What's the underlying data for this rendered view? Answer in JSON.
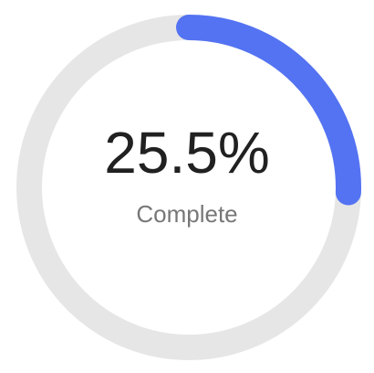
{
  "progress": {
    "fraction": 0.255,
    "value_text": "25.5%",
    "label": "Complete"
  },
  "colors": {
    "track": "#e6e6e6",
    "fill": "#5473f2",
    "value_text": "#212121",
    "label_text": "#777777"
  }
}
